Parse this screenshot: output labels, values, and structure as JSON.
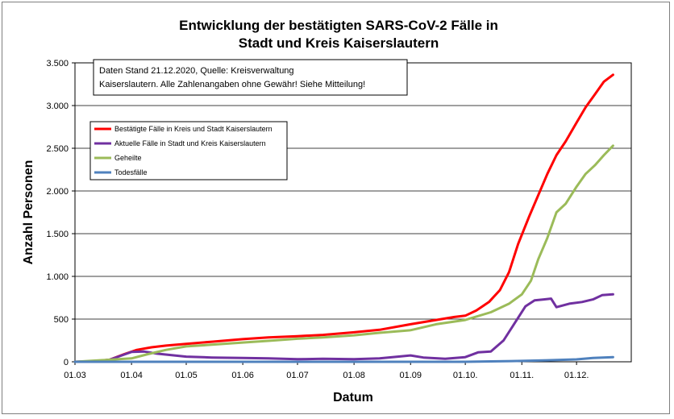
{
  "chart_data": {
    "type": "line",
    "title_lines": [
      "Entwicklung der bestätigten SARS-CoV-2 Fälle in",
      "Stadt und Kreis Kaiserslautern"
    ],
    "xlabel": "Datum",
    "ylabel": "Anzahl Personen",
    "x_range": [
      "2020-03-01",
      "2020-12-31"
    ],
    "ylim": [
      0,
      3500
    ],
    "y_tick_values": [
      0,
      500,
      1000,
      1500,
      2000,
      2500,
      3000,
      3500
    ],
    "y_tick_labels": [
      "0",
      "500",
      "1.000",
      "1.500",
      "2.000",
      "2.500",
      "3.000",
      "3.500"
    ],
    "x_tick_values": [
      "2020-03-01",
      "2020-04-01",
      "2020-05-01",
      "2020-06-01",
      "2020-07-01",
      "2020-08-01",
      "2020-09-01",
      "2020-10-01",
      "2020-11-01",
      "2020-12-01"
    ],
    "x_tick_labels": [
      "01.03",
      "01.04",
      "01.05",
      "01.06",
      "01.07",
      "01.08",
      "01.09",
      "01.10.",
      "01.11.",
      "01.12."
    ],
    "grid": "horizontal",
    "legend_position": "upper-left",
    "annotation_lines": [
      "Daten Stand 21.12.2020, Quelle: Kreisverwaltung",
      "Kaiserslautern. Alle Zahlenangaben ohne Gewähr! Siehe Mitteilung!"
    ],
    "series": [
      {
        "name": "Bestätigte Fälle in Kreis und Stadt Kaiserslautern",
        "color": "#ff0000",
        "points": [
          [
            "2020-03-01",
            0
          ],
          [
            "2020-03-12",
            5
          ],
          [
            "2020-03-20",
            25
          ],
          [
            "2020-03-28",
            90
          ],
          [
            "2020-04-04",
            140
          ],
          [
            "2020-04-12",
            170
          ],
          [
            "2020-04-20",
            190
          ],
          [
            "2020-05-01",
            210
          ],
          [
            "2020-05-15",
            235
          ],
          [
            "2020-06-01",
            265
          ],
          [
            "2020-06-15",
            285
          ],
          [
            "2020-07-01",
            300
          ],
          [
            "2020-07-15",
            315
          ],
          [
            "2020-08-01",
            345
          ],
          [
            "2020-08-15",
            375
          ],
          [
            "2020-09-01",
            440
          ],
          [
            "2020-09-15",
            490
          ],
          [
            "2020-09-25",
            525
          ],
          [
            "2020-10-01",
            540
          ],
          [
            "2020-10-07",
            600
          ],
          [
            "2020-10-14",
            700
          ],
          [
            "2020-10-20",
            840
          ],
          [
            "2020-10-25",
            1050
          ],
          [
            "2020-10-30",
            1380
          ],
          [
            "2020-11-05",
            1700
          ],
          [
            "2020-11-10",
            1950
          ],
          [
            "2020-11-15",
            2200
          ],
          [
            "2020-11-20",
            2420
          ],
          [
            "2020-11-25",
            2580
          ],
          [
            "2020-12-01",
            2800
          ],
          [
            "2020-12-06",
            2980
          ],
          [
            "2020-12-11",
            3130
          ],
          [
            "2020-12-16",
            3280
          ],
          [
            "2020-12-21",
            3360
          ]
        ]
      },
      {
        "name": "Aktuelle Fälle in Stadt und Kreis Kaiserslautern",
        "color": "#7030a0",
        "points": [
          [
            "2020-03-01",
            0
          ],
          [
            "2020-03-12",
            5
          ],
          [
            "2020-03-20",
            25
          ],
          [
            "2020-03-28",
            85
          ],
          [
            "2020-04-01",
            115
          ],
          [
            "2020-04-08",
            120
          ],
          [
            "2020-04-15",
            95
          ],
          [
            "2020-05-01",
            60
          ],
          [
            "2020-05-15",
            50
          ],
          [
            "2020-06-01",
            45
          ],
          [
            "2020-06-15",
            40
          ],
          [
            "2020-07-01",
            30
          ],
          [
            "2020-07-15",
            35
          ],
          [
            "2020-08-01",
            30
          ],
          [
            "2020-08-15",
            40
          ],
          [
            "2020-08-25",
            60
          ],
          [
            "2020-09-01",
            75
          ],
          [
            "2020-09-08",
            50
          ],
          [
            "2020-09-20",
            35
          ],
          [
            "2020-10-01",
            55
          ],
          [
            "2020-10-08",
            110
          ],
          [
            "2020-10-15",
            120
          ],
          [
            "2020-10-22",
            250
          ],
          [
            "2020-10-28",
            450
          ],
          [
            "2020-11-03",
            650
          ],
          [
            "2020-11-08",
            720
          ],
          [
            "2020-11-13",
            730
          ],
          [
            "2020-11-17",
            740
          ],
          [
            "2020-11-20",
            640
          ],
          [
            "2020-11-27",
            680
          ],
          [
            "2020-12-04",
            700
          ],
          [
            "2020-12-10",
            730
          ],
          [
            "2020-12-15",
            780
          ],
          [
            "2020-12-21",
            790
          ]
        ]
      },
      {
        "name": "Geheilte",
        "color": "#9bbb59",
        "points": [
          [
            "2020-03-01",
            0
          ],
          [
            "2020-04-01",
            40
          ],
          [
            "2020-04-10",
            90
          ],
          [
            "2020-04-20",
            140
          ],
          [
            "2020-05-01",
            180
          ],
          [
            "2020-05-15",
            200
          ],
          [
            "2020-06-01",
            225
          ],
          [
            "2020-06-15",
            245
          ],
          [
            "2020-07-01",
            270
          ],
          [
            "2020-07-15",
            285
          ],
          [
            "2020-08-01",
            310
          ],
          [
            "2020-08-15",
            340
          ],
          [
            "2020-09-01",
            370
          ],
          [
            "2020-09-15",
            440
          ],
          [
            "2020-10-01",
            490
          ],
          [
            "2020-10-15",
            580
          ],
          [
            "2020-10-25",
            680
          ],
          [
            "2020-11-01",
            790
          ],
          [
            "2020-11-06",
            950
          ],
          [
            "2020-11-10",
            1200
          ],
          [
            "2020-11-15",
            1450
          ],
          [
            "2020-11-20",
            1750
          ],
          [
            "2020-11-25",
            1850
          ],
          [
            "2020-12-01",
            2050
          ],
          [
            "2020-12-06",
            2200
          ],
          [
            "2020-12-11",
            2300
          ],
          [
            "2020-12-16",
            2420
          ],
          [
            "2020-12-21",
            2530
          ]
        ]
      },
      {
        "name": "Todesfälle",
        "color": "#4f81bd",
        "points": [
          [
            "2020-03-01",
            0
          ],
          [
            "2020-04-01",
            0
          ],
          [
            "2020-05-01",
            0
          ],
          [
            "2020-06-01",
            0
          ],
          [
            "2020-07-01",
            0
          ],
          [
            "2020-08-01",
            0
          ],
          [
            "2020-09-01",
            0
          ],
          [
            "2020-10-01",
            0
          ],
          [
            "2020-10-15",
            5
          ],
          [
            "2020-11-01",
            10
          ],
          [
            "2020-11-15",
            18
          ],
          [
            "2020-12-01",
            28
          ],
          [
            "2020-12-10",
            45
          ],
          [
            "2020-12-21",
            55
          ]
        ]
      }
    ]
  }
}
